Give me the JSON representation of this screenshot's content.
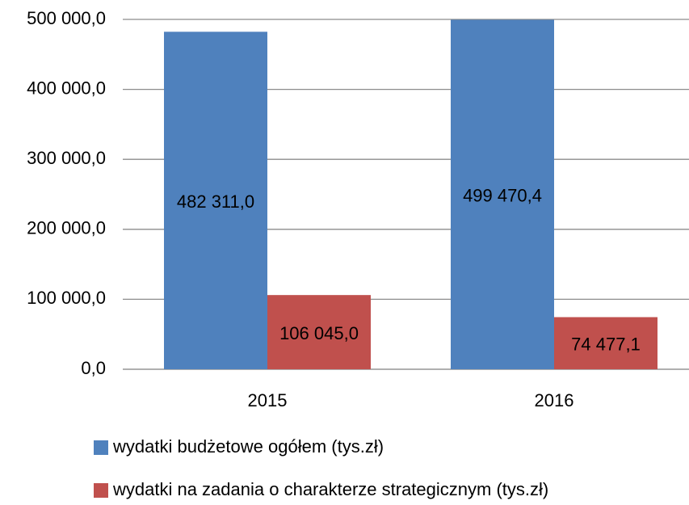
{
  "chart_data": {
    "type": "bar",
    "categories": [
      "2015",
      "2016"
    ],
    "series": [
      {
        "name": "wydatki budżetowe ogółem (tys.zł)",
        "color": "#4f81bd",
        "values": [
          482311.0,
          499470.4
        ],
        "value_labels": [
          "482 311,0",
          "499 470,4"
        ]
      },
      {
        "name": "wydatki na zadania o charakterze strategicznym (tys.zł)",
        "color": "#c0504d",
        "values": [
          106045.0,
          74477.1
        ],
        "value_labels": [
          "106 045,0",
          "74 477,1"
        ]
      }
    ],
    "ylim": [
      0,
      500000
    ],
    "yticks": [
      {
        "value": 0,
        "label": "0,0"
      },
      {
        "value": 100000,
        "label": "100 000,0"
      },
      {
        "value": 200000,
        "label": "200 000,0"
      },
      {
        "value": 300000,
        "label": "300 000,0"
      },
      {
        "value": 400000,
        "label": "400 000,0"
      },
      {
        "value": 500000,
        "label": "500 000,0"
      }
    ],
    "grid": true,
    "legend": "bottom"
  }
}
